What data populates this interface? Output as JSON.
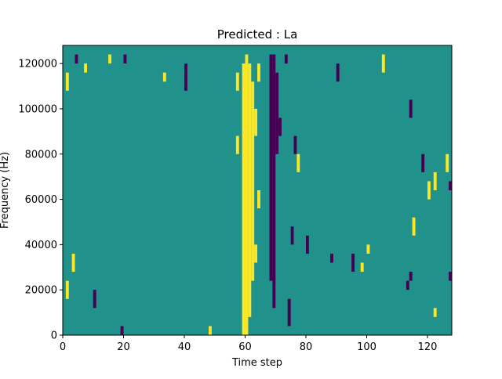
{
  "chart_data": {
    "type": "heatmap",
    "title": "Predicted : La",
    "xlabel": "Time step",
    "ylabel": "Frequency (Hz)",
    "xlim": [
      0,
      128
    ],
    "ylim": [
      0,
      128000
    ],
    "x_ticks": [
      0,
      20,
      40,
      60,
      80,
      100,
      120
    ],
    "y_ticks": [
      0,
      20000,
      40000,
      60000,
      80000,
      100000,
      120000
    ],
    "y_tick_labels": [
      "0",
      "20000",
      "40000",
      "60000",
      "80000",
      "100000",
      "120000"
    ],
    "columns": 128,
    "rows": 32,
    "colormap": {
      "low": "#440154",
      "mid": "#21918c",
      "high": "#fde725"
    },
    "background_value": 0,
    "cell_values": [
      {
        "x": 59,
        "y0": 0,
        "y1": 30,
        "value": 1
      },
      {
        "x": 60,
        "y0": 0,
        "y1": 31,
        "value": 1
      },
      {
        "x": 61,
        "y0": 2,
        "y1": 30,
        "value": 1
      },
      {
        "x": 62,
        "y0": 6,
        "y1": 28,
        "value": 1
      },
      {
        "x": 63,
        "y0": 8,
        "y1": 10,
        "value": 1
      },
      {
        "x": 64,
        "y0": 14,
        "y1": 16,
        "value": 1
      },
      {
        "x": 57,
        "y0": 20,
        "y1": 22,
        "value": 1
      },
      {
        "x": 63,
        "y0": 22,
        "y1": 25,
        "value": 1
      },
      {
        "x": 64,
        "y0": 28,
        "y1": 30,
        "value": 1
      },
      {
        "x": 68,
        "y0": 6,
        "y1": 31,
        "value": -1
      },
      {
        "x": 69,
        "y0": 3,
        "y1": 31,
        "value": -1
      },
      {
        "x": 70,
        "y0": 20,
        "y1": 29,
        "value": -1
      },
      {
        "x": 71,
        "y0": 22,
        "y1": 24,
        "value": -1
      },
      {
        "x": 73,
        "y0": 30,
        "y1": 31,
        "value": -1
      },
      {
        "x": 75,
        "y0": 10,
        "y1": 12,
        "value": -1
      },
      {
        "x": 74,
        "y0": 1,
        "y1": 4,
        "value": -1
      },
      {
        "x": 19,
        "y0": 0,
        "y1": 1,
        "value": -1
      },
      {
        "x": 48,
        "y0": 0,
        "y1": 1,
        "value": 1
      },
      {
        "x": 1,
        "y0": 27,
        "y1": 29,
        "value": 1
      },
      {
        "x": 4,
        "y0": 30,
        "y1": 31,
        "value": -1
      },
      {
        "x": 7,
        "y0": 29,
        "y1": 30,
        "value": 1
      },
      {
        "x": 15,
        "y0": 30,
        "y1": 31,
        "value": 1
      },
      {
        "x": 20,
        "y0": 30,
        "y1": 31,
        "value": -1
      },
      {
        "x": 33,
        "y0": 28,
        "y1": 29,
        "value": 1
      },
      {
        "x": 40,
        "y0": 27,
        "y1": 30,
        "value": -1
      },
      {
        "x": 57,
        "y0": 27,
        "y1": 29,
        "value": 1
      },
      {
        "x": 90,
        "y0": 28,
        "y1": 30,
        "value": -1
      },
      {
        "x": 105,
        "y0": 29,
        "y1": 31,
        "value": 1
      },
      {
        "x": 114,
        "y0": 24,
        "y1": 26,
        "value": -1
      },
      {
        "x": 127,
        "y0": 16,
        "y1": 17,
        "value": -1
      },
      {
        "x": 126,
        "y0": 18,
        "y1": 20,
        "value": 1
      },
      {
        "x": 113,
        "y0": 5,
        "y1": 6,
        "value": -1
      },
      {
        "x": 114,
        "y0": 6,
        "y1": 7,
        "value": -1
      },
      {
        "x": 127,
        "y0": 6,
        "y1": 7,
        "value": -1
      },
      {
        "x": 3,
        "y0": 7,
        "y1": 9,
        "value": 1
      },
      {
        "x": 1,
        "y0": 4,
        "y1": 6,
        "value": 1
      },
      {
        "x": 10,
        "y0": 3,
        "y1": 5,
        "value": -1
      },
      {
        "x": 77,
        "y0": 18,
        "y1": 20,
        "value": 1
      },
      {
        "x": 76,
        "y0": 20,
        "y1": 22,
        "value": -1
      },
      {
        "x": 80,
        "y0": 9,
        "y1": 11,
        "value": -1
      },
      {
        "x": 88,
        "y0": 8,
        "y1": 9,
        "value": -1
      },
      {
        "x": 95,
        "y0": 7,
        "y1": 9,
        "value": -1
      },
      {
        "x": 98,
        "y0": 7,
        "y1": 8,
        "value": 1
      },
      {
        "x": 100,
        "y0": 9,
        "y1": 10,
        "value": 1
      },
      {
        "x": 122,
        "y0": 2,
        "y1": 3,
        "value": 1
      },
      {
        "x": 118,
        "y0": 18,
        "y1": 20,
        "value": -1
      },
      {
        "x": 120,
        "y0": 15,
        "y1": 17,
        "value": 1
      },
      {
        "x": 122,
        "y0": 16,
        "y1": 18,
        "value": 1
      },
      {
        "x": 115,
        "y0": 11,
        "y1": 13,
        "value": 1
      }
    ]
  }
}
